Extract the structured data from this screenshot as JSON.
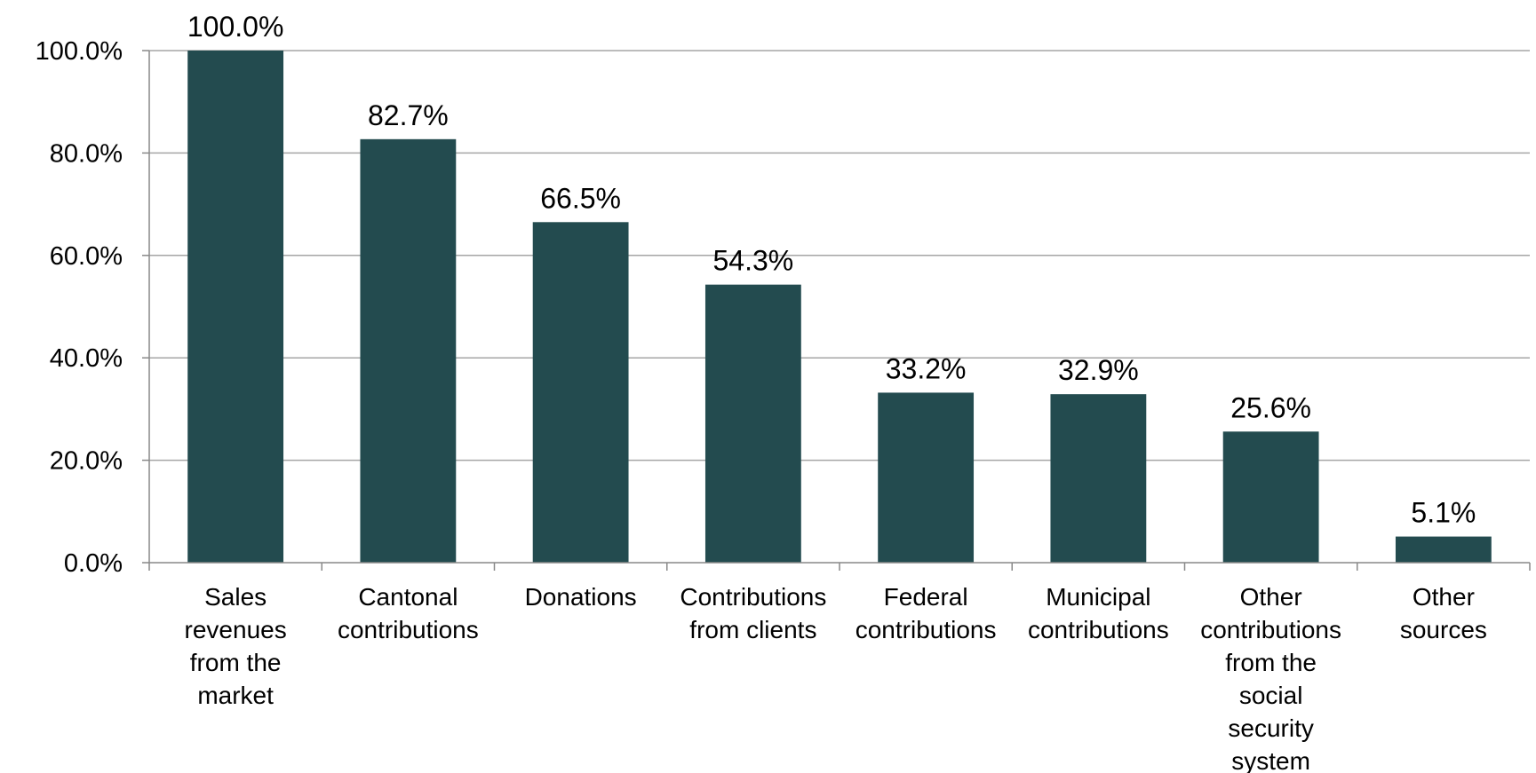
{
  "chart_data": {
    "type": "bar",
    "categories": [
      "Sales revenues from the market",
      "Cantonal contributions",
      "Donations",
      "Contributions from clients",
      "Federal contributions",
      "Municipal contributions",
      "Other contributions from the social security system",
      "Other sources"
    ],
    "category_lines": [
      [
        "Sales",
        "revenues",
        "from the",
        "market"
      ],
      [
        "Cantonal",
        "contributions"
      ],
      [
        "Donations"
      ],
      [
        "Contributions",
        "from clients"
      ],
      [
        "Federal",
        "contributions"
      ],
      [
        "Municipal",
        "contributions"
      ],
      [
        "Other",
        "contributions",
        "from the",
        "social",
        "security",
        "system"
      ],
      [
        "Other",
        "sources"
      ]
    ],
    "values": [
      100.0,
      82.7,
      66.5,
      54.3,
      33.2,
      32.9,
      25.6,
      5.1
    ],
    "data_labels": [
      "100.0%",
      "82.7%",
      "66.5%",
      "54.3%",
      "33.2%",
      "32.9%",
      "25.6%",
      "5.1%"
    ],
    "title": "",
    "xlabel": "",
    "ylabel": "",
    "ylim": [
      0,
      100
    ],
    "yticks": [
      0,
      20,
      40,
      60,
      80,
      100
    ],
    "ytick_labels": [
      "0.0%",
      "20.0%",
      "40.0%",
      "60.0%",
      "80.0%",
      "100.0%"
    ],
    "grid": true,
    "legend": "none",
    "colors": {
      "bar": "#234B4F",
      "grid": "#A6A6A6",
      "axis": "#898989",
      "text": "#000000"
    }
  }
}
